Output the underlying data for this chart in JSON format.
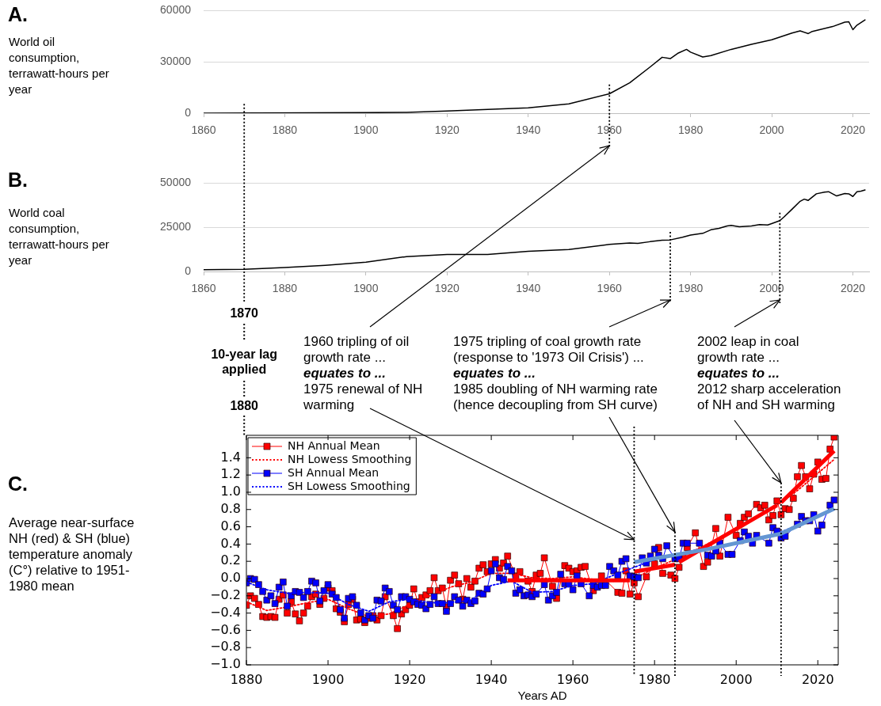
{
  "chart_data": [
    {
      "type": "line",
      "annotations": [
        "A."
      ],
      "ylabel": "World oil consumption, terrawatt-hours per year",
      "x": [
        1860,
        1900,
        1910,
        1920,
        1930,
        1940,
        1950,
        1960,
        1965,
        1970,
        1973,
        1975,
        1977,
        1979,
        1980,
        1983,
        1985,
        1990,
        1995,
        2000,
        2005,
        2007,
        2009,
        2010,
        2015,
        2018,
        2019,
        2020,
        2021,
        2023
      ],
      "values": [
        0,
        300,
        500,
        1300,
        2200,
        3100,
        5400,
        11300,
        17700,
        26900,
        32600,
        31800,
        35100,
        37200,
        35600,
        32800,
        33600,
        37200,
        40200,
        42800,
        46700,
        48000,
        46400,
        47700,
        50500,
        53100,
        53300,
        48700,
        51300,
        54400
      ],
      "color": "#000000",
      "xlim": [
        1860,
        2024
      ],
      "xticks": [
        1860,
        1880,
        1900,
        1920,
        1940,
        1960,
        1980,
        2000,
        2020
      ],
      "ylim": [
        0,
        60000
      ],
      "yticks": [
        0,
        30000,
        60000
      ],
      "grid": "y",
      "ref_lines": [
        {
          "axis": "x",
          "value": 1870,
          "color": "#000000",
          "line_style": "dotted"
        },
        {
          "axis": "x",
          "value": 1960,
          "color": "#000000",
          "line_style": "dotted"
        }
      ]
    },
    {
      "type": "line",
      "annotations": [
        "B."
      ],
      "ylabel": "World coal consumption, terrawatt-hours per year",
      "x": [
        1860,
        1870,
        1880,
        1890,
        1900,
        1910,
        1920,
        1930,
        1940,
        1950,
        1960,
        1965,
        1967,
        1970,
        1973,
        1975,
        1978,
        1980,
        1983,
        1985,
        1987,
        1989,
        1990,
        1992,
        1995,
        1997,
        1999,
        2000,
        2002,
        2003,
        2005,
        2007,
        2008,
        2009,
        2011,
        2013,
        2014,
        2016,
        2018,
        2019,
        2020,
        2021,
        2022,
        2023
      ],
      "values": [
        1000,
        1200,
        2200,
        3500,
        5200,
        8400,
        9600,
        9600,
        11400,
        12400,
        15300,
        16100,
        15800,
        16800,
        17600,
        17800,
        19300,
        20500,
        21500,
        23500,
        24300,
        25700,
        26000,
        25200,
        25700,
        26500,
        26200,
        27000,
        28700,
        30700,
        35100,
        39600,
        40800,
        40100,
        43800,
        44800,
        45000,
        42600,
        44000,
        43800,
        42300,
        45000,
        45300,
        46000
      ],
      "color": "#000000",
      "xlim": [
        1860,
        2024
      ],
      "xticks": [
        1860,
        1880,
        1900,
        1920,
        1940,
        1960,
        1980,
        2000,
        2020
      ],
      "ylim": [
        0,
        50000
      ],
      "yticks": [
        0,
        25000,
        50000
      ],
      "grid": "y",
      "ref_lines": [
        {
          "axis": "x",
          "value": 1870,
          "color": "#000000",
          "line_style": "dotted"
        },
        {
          "axis": "x",
          "value": 1975,
          "color": "#000000",
          "line_style": "dotted"
        },
        {
          "axis": "x",
          "value": 2002,
          "color": "#000000",
          "line_style": "dotted"
        }
      ]
    },
    {
      "type": "line",
      "ylabel": "Average near-surface NH (red) & SH (blue) temperature anomaly (C°) relative to 1951-1980 mean",
      "xlabel": "Years AD",
      "marker": "square",
      "legend": "top left",
      "series": [
        {
          "name": "NH Annual Mean",
          "color": "#ff0000",
          "x": [
            1880,
            1881,
            1882,
            1883,
            1884,
            1885,
            1886,
            1887,
            1888,
            1889,
            1890,
            1891,
            1892,
            1893,
            1894,
            1895,
            1896,
            1897,
            1898,
            1899,
            1900,
            1901,
            1902,
            1903,
            1904,
            1905,
            1906,
            1907,
            1908,
            1909,
            1910,
            1911,
            1912,
            1913,
            1914,
            1916,
            1917,
            1918,
            1919,
            1920,
            1921,
            1922,
            1923,
            1924,
            1925,
            1926,
            1927,
            1928,
            1929,
            1930,
            1931,
            1932,
            1933,
            1934,
            1935,
            1936,
            1937,
            1938,
            1939,
            1940,
            1941,
            1942,
            1943,
            1944,
            1946,
            1947,
            1949,
            1950,
            1951,
            1952,
            1953,
            1955,
            1956,
            1958,
            1959,
            1960,
            1961,
            1962,
            1963,
            1965,
            1967,
            1971,
            1972,
            1973,
            1974,
            1975,
            1976,
            1978,
            1980,
            1981,
            1982,
            1984,
            1985,
            1986,
            1987,
            1988,
            1990,
            1992,
            1993,
            1995,
            1996,
            1998,
            2000,
            2001,
            2002,
            2003,
            2005,
            2006,
            2007,
            2008,
            2009,
            2010,
            2011,
            2012,
            2013,
            2014,
            2015,
            2016,
            2017,
            2018,
            2019,
            2020,
            2021,
            2022,
            2023,
            2024
          ],
          "values": [
            -0.31,
            -0.2,
            -0.23,
            -0.3,
            -0.44,
            -0.45,
            -0.44,
            -0.45,
            -0.24,
            -0.19,
            -0.4,
            -0.27,
            -0.41,
            -0.49,
            -0.4,
            -0.32,
            -0.21,
            -0.18,
            -0.3,
            -0.23,
            -0.11,
            -0.14,
            -0.35,
            -0.39,
            -0.5,
            -0.3,
            -0.24,
            -0.48,
            -0.47,
            -0.51,
            -0.46,
            -0.43,
            -0.48,
            -0.43,
            -0.21,
            -0.43,
            -0.58,
            -0.41,
            -0.36,
            -0.31,
            -0.12,
            -0.27,
            -0.22,
            -0.19,
            -0.14,
            0.01,
            -0.14,
            -0.11,
            -0.33,
            -0.02,
            0.04,
            -0.06,
            -0.24,
            0.0,
            -0.1,
            -0.03,
            0.12,
            0.16,
            0.08,
            0.17,
            0.22,
            0.12,
            0.18,
            0.26,
            0.03,
            0.08,
            -0.03,
            -0.15,
            0.04,
            0.06,
            0.24,
            -0.09,
            -0.23,
            0.15,
            0.12,
            0.08,
            0.09,
            0.13,
            0.14,
            -0.14,
            0.03,
            -0.16,
            -0.17,
            0.09,
            -0.18,
            -0.05,
            -0.21,
            0.02,
            0.17,
            0.36,
            0.06,
            0.04,
            0.0,
            0.13,
            0.26,
            0.36,
            0.53,
            0.14,
            0.19,
            0.58,
            0.26,
            0.71,
            0.5,
            0.64,
            0.71,
            0.75,
            0.86,
            0.82,
            0.85,
            0.68,
            0.73,
            0.9,
            0.74,
            0.81,
            0.8,
            0.93,
            1.18,
            1.31,
            1.18,
            1.04,
            1.21,
            1.35,
            1.15,
            1.16,
            1.5,
            1.64
          ]
        },
        {
          "name": "NH Lowess Smoothing",
          "color": "#ff0000",
          "marker": "none",
          "line_style": "dotted",
          "x": [
            1880,
            1885,
            1890,
            1895,
            1900,
            1905,
            1910,
            1915,
            1920,
            1925,
            1930,
            1935,
            1940,
            1945,
            1950,
            1955,
            1960,
            1965,
            1970,
            1975,
            1980,
            1985,
            1990,
            1995,
            2000,
            2005,
            2010,
            2015,
            2020,
            2024
          ],
          "values": [
            -0.27,
            -0.37,
            -0.33,
            -0.28,
            -0.24,
            -0.35,
            -0.44,
            -0.41,
            -0.3,
            -0.2,
            -0.1,
            -0.04,
            0.06,
            0.06,
            0.01,
            0.0,
            0.02,
            -0.01,
            -0.03,
            0.0,
            0.12,
            0.22,
            0.33,
            0.45,
            0.58,
            0.72,
            0.85,
            1.02,
            1.22,
            1.38
          ]
        },
        {
          "name": "SH Annual Mean",
          "color": "#0000ff",
          "x": [
            1880,
            1881,
            1882,
            1883,
            1884,
            1885,
            1886,
            1887,
            1888,
            1889,
            1890,
            1891,
            1892,
            1893,
            1894,
            1895,
            1896,
            1897,
            1898,
            1899,
            1900,
            1901,
            1902,
            1903,
            1904,
            1905,
            1906,
            1907,
            1908,
            1909,
            1910,
            1911,
            1912,
            1913,
            1914,
            1915,
            1916,
            1917,
            1918,
            1919,
            1920,
            1921,
            1922,
            1923,
            1924,
            1925,
            1926,
            1927,
            1928,
            1929,
            1930,
            1931,
            1932,
            1933,
            1934,
            1935,
            1936,
            1937,
            1938,
            1939,
            1940,
            1941,
            1942,
            1943,
            1944,
            1945,
            1946,
            1947,
            1948,
            1949,
            1950,
            1951,
            1953,
            1954,
            1955,
            1956,
            1957,
            1958,
            1959,
            1960,
            1961,
            1962,
            1964,
            1965,
            1966,
            1967,
            1968,
            1969,
            1970,
            1971,
            1972,
            1973,
            1974,
            1975,
            1976,
            1977,
            1978,
            1979,
            1980,
            1981,
            1982,
            1983,
            1985,
            1986,
            1987,
            1988,
            1991,
            1993,
            1994,
            1995,
            1996,
            1998,
            1999,
            2001,
            2002,
            2003,
            2004,
            2005,
            2008,
            2009,
            2010,
            2011,
            2012,
            2015,
            2016,
            2017,
            2018,
            2019,
            2020,
            2021,
            2023,
            2024
          ],
          "values": [
            -0.05,
            0.0,
            -0.01,
            -0.07,
            -0.15,
            -0.25,
            -0.2,
            -0.29,
            -0.1,
            -0.04,
            -0.32,
            -0.2,
            -0.15,
            -0.16,
            -0.22,
            -0.15,
            -0.03,
            -0.05,
            -0.26,
            -0.14,
            -0.07,
            -0.18,
            -0.22,
            -0.36,
            -0.46,
            -0.23,
            -0.21,
            -0.31,
            -0.4,
            -0.48,
            -0.43,
            -0.46,
            -0.25,
            -0.26,
            -0.11,
            -0.15,
            -0.31,
            -0.36,
            -0.21,
            -0.21,
            -0.24,
            -0.27,
            -0.3,
            -0.31,
            -0.35,
            -0.3,
            -0.21,
            -0.29,
            -0.29,
            -0.38,
            -0.29,
            -0.21,
            -0.25,
            -0.32,
            -0.25,
            -0.29,
            -0.26,
            -0.17,
            -0.18,
            -0.12,
            0.09,
            0.17,
            0.01,
            -0.01,
            0.14,
            0.09,
            -0.17,
            -0.13,
            -0.2,
            -0.19,
            -0.21,
            -0.18,
            -0.07,
            -0.25,
            -0.2,
            -0.16,
            0.05,
            -0.06,
            -0.06,
            -0.13,
            0.03,
            -0.06,
            -0.2,
            -0.08,
            -0.1,
            -0.08,
            -0.08,
            0.14,
            0.09,
            0.04,
            0.2,
            0.23,
            0.03,
            0.02,
            0.01,
            0.24,
            0.18,
            0.26,
            0.34,
            0.27,
            0.23,
            0.38,
            0.23,
            0.23,
            0.41,
            0.41,
            0.41,
            0.27,
            0.26,
            0.32,
            0.41,
            0.28,
            0.28,
            0.44,
            0.54,
            0.49,
            0.41,
            0.5,
            0.41,
            0.59,
            0.55,
            0.47,
            0.49,
            0.63,
            0.72,
            0.67,
            0.67,
            0.74,
            0.55,
            0.62,
            0.85,
            0.91
          ]
        },
        {
          "name": "SH Lowess Smoothing",
          "color": "#0000ff",
          "marker": "none",
          "line_style": "dotted",
          "x": [
            1880,
            1885,
            1890,
            1895,
            1900,
            1905,
            1910,
            1915,
            1920,
            1925,
            1930,
            1935,
            1940,
            1945,
            1950,
            1955,
            1960,
            1965,
            1970,
            1975,
            1980,
            1985,
            1990,
            1995,
            2000,
            2005,
            2010,
            2015,
            2020,
            2024
          ],
          "values": [
            -0.04,
            -0.13,
            -0.17,
            -0.16,
            -0.17,
            -0.3,
            -0.38,
            -0.27,
            -0.24,
            -0.28,
            -0.28,
            -0.25,
            -0.08,
            -0.03,
            -0.16,
            -0.15,
            -0.08,
            -0.06,
            0.04,
            0.13,
            0.22,
            0.28,
            0.33,
            0.36,
            0.4,
            0.45,
            0.52,
            0.62,
            0.72,
            0.8
          ]
        },
        {
          "color": "#ff0000",
          "marker": "none",
          "x": [
            1944,
            1974
          ],
          "values": [
            -0.02,
            -0.02
          ]
        },
        {
          "color": "#ff0000",
          "marker": "none",
          "x": [
            1975,
            1985
          ],
          "values": [
            0.08,
            0.16
          ]
        },
        {
          "color": "#ff0000",
          "marker": "none",
          "x": [
            1986,
            2010
          ],
          "values": [
            0.19,
            0.85
          ]
        },
        {
          "color": "#ff0000",
          "marker": "none",
          "x": [
            2011,
            2024
          ],
          "values": [
            0.88,
            1.48
          ]
        },
        {
          "color": "#6496d2",
          "marker": "none",
          "x": [
            1975,
            1993,
            2011,
            2024
          ],
          "values": [
            0.19,
            0.34,
            0.52,
            0.81
          ]
        }
      ],
      "xlim": [
        1880,
        2025
      ],
      "xticks": [
        1880,
        1900,
        1920,
        1940,
        1960,
        1980,
        2000,
        2020
      ],
      "ylim": [
        -1.0,
        1.66
      ],
      "yticks": [
        {
          "value": -1.0,
          "label": "−1.0"
        },
        {
          "value": -0.8,
          "label": "−0.8"
        },
        {
          "value": -0.6,
          "label": "−0.6"
        },
        {
          "value": -0.4,
          "label": "−0.4"
        },
        {
          "value": -0.2,
          "label": "−0.2"
        },
        {
          "value": 0,
          "label": "0.0"
        },
        {
          "value": 0.2,
          "label": "0.2"
        },
        {
          "value": 0.4,
          "label": "0.4"
        },
        {
          "value": 0.6,
          "label": "0.6"
        },
        {
          "value": 0.8,
          "label": "0.8"
        },
        {
          "value": 1.0,
          "label": "1.0"
        },
        {
          "value": 1.2,
          "label": "1.2"
        },
        {
          "value": 1.4,
          "label": "1.4"
        }
      ],
      "ref_lines": [
        {
          "axis": "x",
          "value": 1975,
          "color": "#000000",
          "line_style": "dotted"
        },
        {
          "axis": "x",
          "value": 1985,
          "color": "#000000",
          "line_style": "dotted"
        },
        {
          "axis": "x",
          "value": 2011,
          "color": "#000000",
          "line_style": "dotted"
        }
      ],
      "annotations": [
        "C.",
        "1870",
        "10-year lag applied",
        "1880",
        "1960 tripling of oil\ngrowth rate ...",
        "equates to ...",
        {
          "text": "1975 renewal of NH\nwarming",
          "x": 1975,
          "y": 0.45
        },
        "1975 tripling of coal growth rate\n(response to '1973 Oil Crisis') ...",
        "equates to ...",
        {
          "text": "1985 doubling of NH warming rate\n(hence decoupling from SH curve)",
          "x": 1985,
          "y": 0.54
        },
        "2002 leap in coal\ngrowth rate ...",
        "equates to ...",
        {
          "text": "2012 sharp acceleration\nof NH and SH warming",
          "x": 2011,
          "y": 1.11
        }
      ]
    }
  ]
}
